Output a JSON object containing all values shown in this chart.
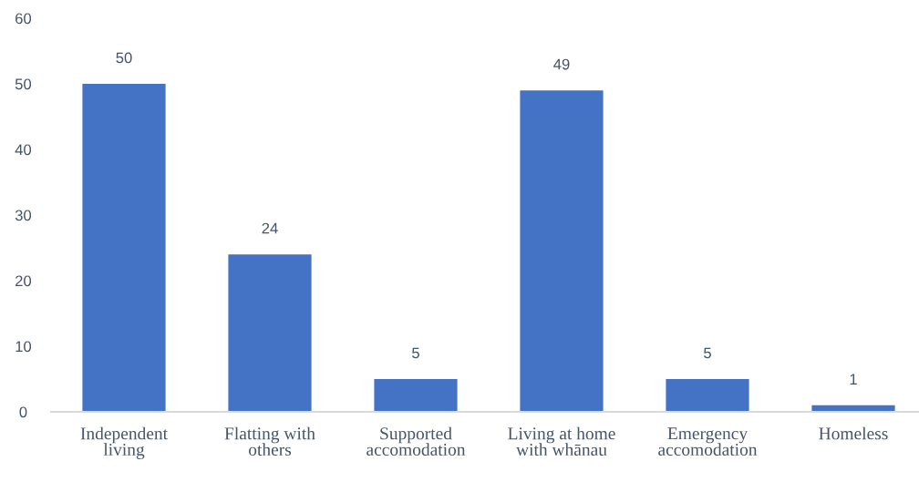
{
  "chart_data": {
    "type": "bar",
    "categories": [
      "Independent living",
      "Flatting with others",
      "Supported accomodation",
      "Living at home with whānau",
      "Emergency accomodation",
      "Homeless"
    ],
    "values": [
      50,
      24,
      5,
      49,
      5,
      1
    ],
    "color": "#4472c4",
    "ylim": [
      0,
      60
    ],
    "yticks": [
      0,
      10,
      20,
      30,
      40,
      50,
      60
    ],
    "data_labels": true,
    "grid": false,
    "legend": false
  }
}
